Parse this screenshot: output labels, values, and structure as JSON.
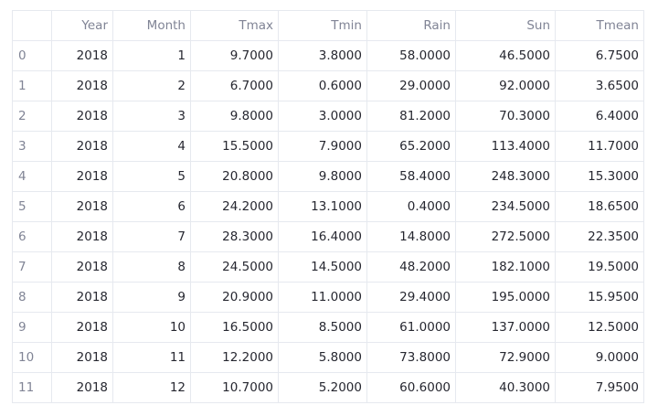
{
  "table": {
    "columns": [
      "",
      "Year",
      "Month",
      "Tmax",
      "Tmin",
      "Rain",
      "Sun",
      "Tmean"
    ],
    "rows": [
      {
        "index": "0",
        "cells": [
          "2018",
          "1",
          "9.7000",
          "3.8000",
          "58.0000",
          "46.5000",
          "6.7500"
        ]
      },
      {
        "index": "1",
        "cells": [
          "2018",
          "2",
          "6.7000",
          "0.6000",
          "29.0000",
          "92.0000",
          "3.6500"
        ]
      },
      {
        "index": "2",
        "cells": [
          "2018",
          "3",
          "9.8000",
          "3.0000",
          "81.2000",
          "70.3000",
          "6.4000"
        ]
      },
      {
        "index": "3",
        "cells": [
          "2018",
          "4",
          "15.5000",
          "7.9000",
          "65.2000",
          "113.4000",
          "11.7000"
        ]
      },
      {
        "index": "4",
        "cells": [
          "2018",
          "5",
          "20.8000",
          "9.8000",
          "58.4000",
          "248.3000",
          "15.3000"
        ]
      },
      {
        "index": "5",
        "cells": [
          "2018",
          "6",
          "24.2000",
          "13.1000",
          "0.4000",
          "234.5000",
          "18.6500"
        ]
      },
      {
        "index": "6",
        "cells": [
          "2018",
          "7",
          "28.3000",
          "16.4000",
          "14.8000",
          "272.5000",
          "22.3500"
        ]
      },
      {
        "index": "7",
        "cells": [
          "2018",
          "8",
          "24.5000",
          "14.5000",
          "48.2000",
          "182.1000",
          "19.5000"
        ]
      },
      {
        "index": "8",
        "cells": [
          "2018",
          "9",
          "20.9000",
          "11.0000",
          "29.4000",
          "195.0000",
          "15.9500"
        ]
      },
      {
        "index": "9",
        "cells": [
          "2018",
          "10",
          "16.5000",
          "8.5000",
          "61.0000",
          "137.0000",
          "12.5000"
        ]
      },
      {
        "index": "10",
        "cells": [
          "2018",
          "11",
          "12.2000",
          "5.8000",
          "73.8000",
          "72.9000",
          "9.0000"
        ]
      },
      {
        "index": "11",
        "cells": [
          "2018",
          "12",
          "10.7000",
          "5.2000",
          "60.6000",
          "40.3000",
          "7.9500"
        ]
      }
    ]
  }
}
